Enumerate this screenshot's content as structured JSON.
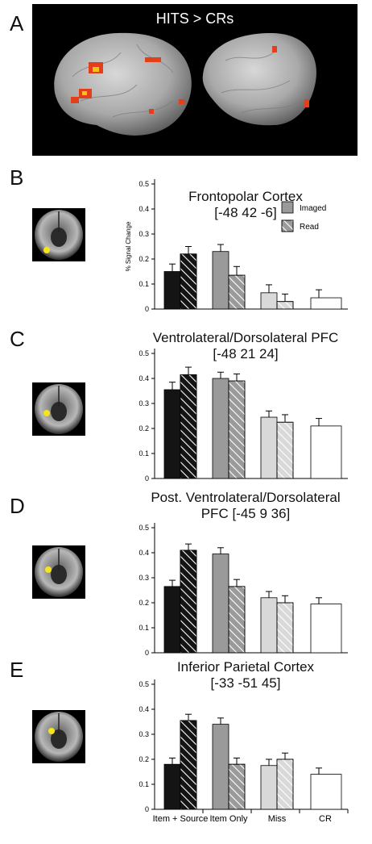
{
  "panelA": {
    "letter": "A",
    "title": "HITS > CRs"
  },
  "panels": [
    {
      "letter": "B",
      "title_line1": "Frontopolar Cortex",
      "title_line2": "[-48 42 -6]"
    },
    {
      "letter": "C",
      "title_line1": "Ventrolateral/Dorsolateral PFC",
      "title_line2": "[-48 21 24]"
    },
    {
      "letter": "D",
      "title_line1": "Post. Ventrolateral/Dorsolateral",
      "title_line2": "PFC  [-45 9 36]"
    },
    {
      "letter": "E",
      "title_line1": "Inferior Parietal Cortex",
      "title_line2": "[-33 -51 45]"
    }
  ],
  "legend": {
    "imaged": "Imaged",
    "read": "Read"
  },
  "ylabel": "% Signal Change",
  "categories": [
    "Item + Source",
    "Item Only",
    "Miss",
    "CR"
  ],
  "colors": {
    "item_source": "#141414",
    "item_only": "#9a9a9a",
    "miss": "#d9d9d9",
    "cr": "#ffffff",
    "blob": "#f5e61a"
  },
  "chart_data": [
    {
      "type": "bar",
      "title": "Frontopolar Cortex [-48 42 -6]",
      "ylabel": "% Signal Change",
      "ylim": [
        0,
        0.5
      ],
      "yticks": [
        0,
        0.1,
        0.2,
        0.3,
        0.4,
        0.5
      ],
      "tick_labels": [
        "0",
        "0.1",
        "0.2",
        "0.3",
        "0.4",
        "0.5"
      ],
      "series": [
        {
          "name": "Imaged",
          "values": [
            0.15,
            0.23,
            0.065,
            0.045
          ],
          "errors": [
            0.03,
            0.028,
            0.032,
            0.032
          ]
        },
        {
          "name": "Read",
          "values": [
            0.22,
            0.135,
            0.03,
            null
          ],
          "errors": [
            0.03,
            0.035,
            0.03,
            null
          ]
        }
      ]
    },
    {
      "type": "bar",
      "title": "Ventrolateral/Dorsolateral PFC [-48 21 24]",
      "ylim": [
        0,
        0.5
      ],
      "yticks": [
        0,
        0.1,
        0.2,
        0.3,
        0.4,
        0.5
      ],
      "tick_labels": [
        "0",
        "0.1",
        "0.2",
        "0.3",
        "0.4",
        "0.5"
      ],
      "series": [
        {
          "name": "Imaged",
          "values": [
            0.355,
            0.4,
            0.245,
            0.21
          ],
          "errors": [
            0.03,
            0.025,
            0.025,
            0.03
          ]
        },
        {
          "name": "Read",
          "values": [
            0.415,
            0.39,
            0.225,
            null
          ],
          "errors": [
            0.03,
            0.028,
            0.03,
            null
          ]
        }
      ]
    },
    {
      "type": "bar",
      "title": "Post. Ventrolateral/Dorsolateral PFC [-45 9 36]",
      "ylim": [
        0,
        0.5
      ],
      "yticks": [
        0,
        0.1,
        0.2,
        0.3,
        0.4,
        0.5
      ],
      "tick_labels": [
        "0",
        "0.1",
        "0.2",
        "0.3",
        "0.4",
        "0.5"
      ],
      "series": [
        {
          "name": "Imaged",
          "values": [
            0.265,
            0.395,
            0.22,
            0.195
          ],
          "errors": [
            0.025,
            0.025,
            0.025,
            0.025
          ]
        },
        {
          "name": "Read",
          "values": [
            0.41,
            0.265,
            0.2,
            null
          ],
          "errors": [
            0.025,
            0.028,
            0.028,
            null
          ]
        }
      ]
    },
    {
      "type": "bar",
      "title": "Inferior Parietal Cortex [-33 -51 45]",
      "ylim": [
        0,
        0.5
      ],
      "yticks": [
        0,
        0.1,
        0.2,
        0.3,
        0.4,
        0.5
      ],
      "tick_labels": [
        "0",
        "0.1",
        "0.2",
        "0.3",
        "0.4",
        "0.5"
      ],
      "series": [
        {
          "name": "Imaged",
          "values": [
            0.18,
            0.34,
            0.175,
            0.14
          ],
          "errors": [
            0.025,
            0.025,
            0.025,
            0.025
          ]
        },
        {
          "name": "Read",
          "values": [
            0.355,
            0.18,
            0.2,
            null
          ],
          "errors": [
            0.025,
            0.025,
            0.025,
            null
          ]
        }
      ]
    }
  ]
}
